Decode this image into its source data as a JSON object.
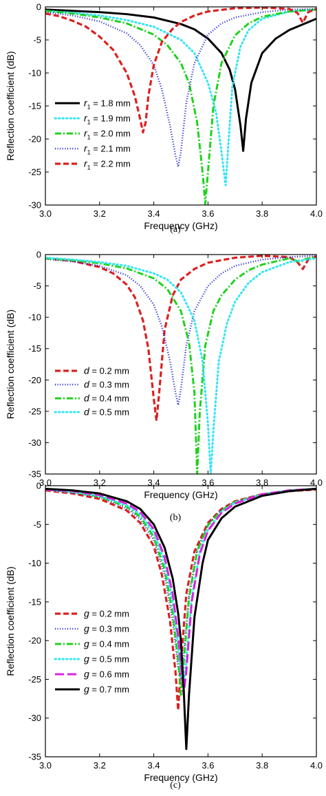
{
  "chart_data": [
    {
      "type": "line",
      "caption": "(a)",
      "xlabel": "Frequency (GHz)",
      "ylabel": "Reflection coefficient (dB)",
      "xlim": [
        3.0,
        4.0
      ],
      "ylim": [
        -30,
        0
      ],
      "xticks": [
        "3.0",
        "3.2",
        "3.4",
        "3.6",
        "3.8",
        "4.0"
      ],
      "yticks": [
        "0",
        "-5",
        "-10",
        "-15",
        "-20",
        "-25",
        "-30"
      ],
      "legend_position": "left",
      "series": [
        {
          "var": "r",
          "sub": "1",
          "value": "= 1.8 mm",
          "color": "#000000",
          "style": "solid",
          "x": [
            3.0,
            3.1,
            3.2,
            3.3,
            3.4,
            3.5,
            3.55,
            3.6,
            3.65,
            3.68,
            3.7,
            3.72,
            3.73,
            3.74,
            3.76,
            3.8,
            3.85,
            3.9,
            4.0
          ],
          "y": [
            -0.4,
            -0.6,
            -0.8,
            -1.1,
            -1.6,
            -2.6,
            -3.4,
            -4.8,
            -7.0,
            -9.5,
            -12.5,
            -18.0,
            -21.8,
            -17.0,
            -11.5,
            -7.0,
            -4.8,
            -3.5,
            -1.8
          ]
        },
        {
          "var": "r",
          "sub": "1",
          "value": "= 1.9 mm",
          "color": "#33e6f2",
          "style": "dot",
          "x": [
            3.0,
            3.1,
            3.2,
            3.3,
            3.4,
            3.5,
            3.55,
            3.6,
            3.63,
            3.65,
            3.665,
            3.67,
            3.69,
            3.72,
            3.75,
            3.8,
            3.9,
            4.0
          ],
          "y": [
            -0.6,
            -0.9,
            -1.3,
            -2.0,
            -3.0,
            -5.0,
            -7.0,
            -11.5,
            -16.0,
            -22.0,
            -27.0,
            -24.0,
            -12.0,
            -6.0,
            -3.5,
            -1.8,
            -0.7,
            -0.4
          ]
        },
        {
          "var": "r",
          "sub": "1",
          "value": "= 2.0 mm",
          "color": "#1ed21e",
          "style": "dashdot",
          "x": [
            3.0,
            3.1,
            3.2,
            3.3,
            3.4,
            3.45,
            3.5,
            3.53,
            3.56,
            3.58,
            3.59,
            3.6,
            3.62,
            3.65,
            3.7,
            3.75,
            3.8,
            3.9,
            4.0
          ],
          "y": [
            -0.6,
            -1.0,
            -1.6,
            -2.5,
            -4.2,
            -5.8,
            -8.5,
            -11.5,
            -17.5,
            -25.0,
            -29.8,
            -25.0,
            -15.0,
            -8.5,
            -4.3,
            -2.5,
            -1.5,
            -0.7,
            -0.4
          ]
        },
        {
          "var": "r",
          "sub": "1",
          "value": "= 2.1 mm",
          "color": "#1414d2",
          "style": "dense",
          "x": [
            3.0,
            3.1,
            3.2,
            3.3,
            3.35,
            3.4,
            3.43,
            3.46,
            3.48,
            3.49,
            3.5,
            3.52,
            3.55,
            3.6,
            3.65,
            3.7,
            3.8,
            3.9,
            4.0
          ],
          "y": [
            -0.8,
            -1.3,
            -2.2,
            -4.0,
            -5.8,
            -8.8,
            -12.5,
            -18.0,
            -22.5,
            -24.2,
            -22.0,
            -14.5,
            -8.5,
            -4.2,
            -2.5,
            -1.6,
            -0.8,
            -0.4,
            -0.3
          ]
        },
        {
          "var": "r",
          "sub": "1",
          "value": "= 2.2 mm",
          "color": "#dc2020",
          "style": "dash",
          "x": [
            3.0,
            3.05,
            3.1,
            3.15,
            3.2,
            3.25,
            3.3,
            3.33,
            3.35,
            3.36,
            3.37,
            3.38,
            3.4,
            3.43,
            3.47,
            3.5,
            3.55,
            3.6,
            3.7,
            3.8,
            3.9,
            3.93,
            3.95,
            3.97,
            4.0
          ],
          "y": [
            -1.0,
            -1.4,
            -2.1,
            -3.0,
            -4.5,
            -6.5,
            -10.0,
            -13.5,
            -17.0,
            -19.0,
            -17.5,
            -13.5,
            -8.8,
            -5.3,
            -3.3,
            -2.3,
            -1.3,
            -0.7,
            -0.2,
            -0.1,
            -0.3,
            -0.9,
            -2.4,
            -0.8,
            -0.3
          ]
        }
      ]
    },
    {
      "type": "line",
      "caption": "(b)",
      "xlabel": "Frequency (GHz)",
      "ylabel": "Reflection coefficient (dB)",
      "xlim": [
        3.0,
        4.0
      ],
      "ylim": [
        -35,
        0
      ],
      "xticks": [
        "3.0",
        "3.2",
        "3.4",
        "3.6",
        "3.8",
        "4.0"
      ],
      "yticks": [
        "0",
        "-5",
        "-10",
        "-15",
        "-20",
        "-25",
        "-30",
        "-35"
      ],
      "legend_position": "left",
      "series": [
        {
          "var": "d",
          "sub": "",
          "value": "= 0.2 mm",
          "color": "#dc2020",
          "style": "dash",
          "x": [
            3.0,
            3.1,
            3.2,
            3.25,
            3.3,
            3.33,
            3.36,
            3.38,
            3.4,
            3.41,
            3.42,
            3.44,
            3.47,
            3.5,
            3.55,
            3.6,
            3.7,
            3.8,
            3.9,
            3.93,
            3.95,
            3.97,
            4.0
          ],
          "y": [
            -0.6,
            -1.0,
            -2.0,
            -3.0,
            -4.8,
            -6.8,
            -10.5,
            -15.0,
            -23.0,
            -26.5,
            -22.0,
            -12.0,
            -6.5,
            -4.0,
            -2.3,
            -1.3,
            -0.5,
            -0.2,
            -0.4,
            -1.2,
            -2.3,
            -0.8,
            -0.3
          ]
        },
        {
          "var": "d",
          "sub": "",
          "value": "= 0.3 mm",
          "color": "#1414d2",
          "style": "dense",
          "x": [
            3.0,
            3.1,
            3.2,
            3.3,
            3.35,
            3.4,
            3.43,
            3.46,
            3.48,
            3.49,
            3.5,
            3.52,
            3.55,
            3.6,
            3.65,
            3.7,
            3.8,
            3.9,
            4.0
          ],
          "y": [
            -0.7,
            -1.1,
            -1.8,
            -3.3,
            -5.0,
            -8.0,
            -11.5,
            -17.0,
            -22.0,
            -24.0,
            -21.5,
            -14.5,
            -9.0,
            -5.0,
            -3.0,
            -1.8,
            -0.8,
            -0.4,
            -0.2
          ]
        },
        {
          "var": "d",
          "sub": "",
          "value": "= 0.4 mm",
          "color": "#1ed21e",
          "style": "dashdot",
          "x": [
            3.0,
            3.1,
            3.2,
            3.3,
            3.4,
            3.45,
            3.5,
            3.53,
            3.55,
            3.56,
            3.57,
            3.59,
            3.62,
            3.65,
            3.7,
            3.75,
            3.8,
            3.9,
            3.94,
            3.96,
            4.0
          ],
          "y": [
            -0.6,
            -0.9,
            -1.4,
            -2.2,
            -3.8,
            -5.5,
            -9.0,
            -14.0,
            -22.0,
            -35.0,
            -25.0,
            -14.5,
            -9.0,
            -6.5,
            -4.0,
            -2.5,
            -1.6,
            -0.6,
            -1.2,
            -0.7,
            -0.4
          ]
        },
        {
          "var": "d",
          "sub": "",
          "value": "= 0.5 mm",
          "color": "#33e6f2",
          "style": "dot",
          "x": [
            3.0,
            3.1,
            3.2,
            3.3,
            3.4,
            3.45,
            3.5,
            3.55,
            3.58,
            3.6,
            3.61,
            3.62,
            3.64,
            3.67,
            3.7,
            3.75,
            3.8,
            3.9,
            4.0
          ],
          "y": [
            -0.5,
            -0.8,
            -1.2,
            -1.8,
            -3.0,
            -4.0,
            -6.0,
            -10.5,
            -17.0,
            -27.0,
            -35.0,
            -28.0,
            -17.0,
            -11.0,
            -7.5,
            -4.5,
            -2.8,
            -1.2,
            -0.6
          ]
        }
      ]
    },
    {
      "type": "line",
      "caption": "(c)",
      "xlabel": "Frequency (GHz)",
      "ylabel": "Reflection coefficient (dB)",
      "xlim": [
        3.0,
        4.0
      ],
      "ylim": [
        -35,
        0
      ],
      "xticks": [
        "3.0",
        "3.2",
        "3.4",
        "3.6",
        "3.8",
        "4.0"
      ],
      "yticks": [
        "0",
        "-5",
        "-10",
        "-15",
        "-20",
        "-25",
        "-30",
        "-35"
      ],
      "legend_position": "left",
      "series": [
        {
          "var": "g",
          "sub": "",
          "value": "= 0.2 mm",
          "color": "#dc2020",
          "style": "dash",
          "x": [
            3.0,
            3.1,
            3.2,
            3.3,
            3.35,
            3.4,
            3.43,
            3.46,
            3.48,
            3.49,
            3.5,
            3.52,
            3.55,
            3.6,
            3.65,
            3.7,
            3.8,
            3.9,
            4.0
          ],
          "y": [
            -0.6,
            -1.0,
            -1.7,
            -3.2,
            -4.8,
            -7.8,
            -11.5,
            -17.5,
            -24.0,
            -29.0,
            -23.0,
            -14.0,
            -8.5,
            -4.8,
            -3.0,
            -2.0,
            -1.1,
            -0.7,
            -0.5
          ]
        },
        {
          "var": "g",
          "sub": "",
          "value": "= 0.3 mm",
          "color": "#1414d2",
          "style": "dense",
          "x": [
            3.0,
            3.1,
            3.2,
            3.3,
            3.35,
            3.4,
            3.44,
            3.47,
            3.49,
            3.5,
            3.51,
            3.53,
            3.56,
            3.6,
            3.65,
            3.7,
            3.8,
            3.9,
            4.0
          ],
          "y": [
            -0.5,
            -0.9,
            -1.5,
            -2.9,
            -4.3,
            -7.0,
            -11.5,
            -17.5,
            -23.5,
            -25.0,
            -22.0,
            -14.0,
            -8.3,
            -5.0,
            -3.1,
            -2.1,
            -1.1,
            -0.6,
            -0.4
          ]
        },
        {
          "var": "g",
          "sub": "",
          "value": "= 0.4 mm",
          "color": "#1ed21e",
          "style": "dashdot",
          "x": [
            3.0,
            3.1,
            3.2,
            3.3,
            3.35,
            3.4,
            3.44,
            3.47,
            3.49,
            3.5,
            3.51,
            3.53,
            3.56,
            3.6,
            3.65,
            3.7,
            3.8,
            3.9,
            4.0
          ],
          "y": [
            -0.5,
            -0.8,
            -1.4,
            -2.7,
            -4.0,
            -6.6,
            -10.8,
            -16.5,
            -22.5,
            -27.0,
            -23.0,
            -14.5,
            -8.5,
            -5.1,
            -3.2,
            -2.1,
            -1.1,
            -0.6,
            -0.4
          ]
        },
        {
          "var": "g",
          "sub": "",
          "value": "= 0.5 mm",
          "color": "#33e6f2",
          "style": "dot",
          "x": [
            3.0,
            3.1,
            3.2,
            3.3,
            3.35,
            3.4,
            3.44,
            3.47,
            3.49,
            3.5,
            3.51,
            3.52,
            3.54,
            3.57,
            3.6,
            3.65,
            3.7,
            3.8,
            3.9,
            4.0
          ],
          "y": [
            -0.5,
            -0.8,
            -1.3,
            -2.5,
            -3.7,
            -6.0,
            -9.8,
            -15.0,
            -20.5,
            -24.0,
            -26.0,
            -22.5,
            -14.5,
            -8.5,
            -5.7,
            -3.4,
            -2.2,
            -1.1,
            -0.6,
            -0.4
          ]
        },
        {
          "var": "g",
          "sub": "",
          "value": "= 0.6 mm",
          "color": "#e020e0",
          "style": "longdash",
          "x": [
            3.0,
            3.1,
            3.2,
            3.3,
            3.35,
            3.4,
            3.44,
            3.47,
            3.49,
            3.5,
            3.51,
            3.52,
            3.54,
            3.57,
            3.6,
            3.65,
            3.7,
            3.8,
            3.9,
            4.0
          ],
          "y": [
            -0.5,
            -0.7,
            -1.2,
            -2.3,
            -3.4,
            -5.6,
            -9.2,
            -14.0,
            -19.5,
            -23.0,
            -27.0,
            -24.0,
            -15.0,
            -8.8,
            -5.8,
            -3.5,
            -2.3,
            -1.1,
            -0.6,
            -0.4
          ]
        },
        {
          "var": "g",
          "sub": "",
          "value": "= 0.7 mm",
          "color": "#000000",
          "style": "solid",
          "x": [
            3.0,
            3.1,
            3.2,
            3.3,
            3.35,
            3.4,
            3.44,
            3.47,
            3.49,
            3.5,
            3.51,
            3.52,
            3.53,
            3.55,
            3.58,
            3.6,
            3.65,
            3.7,
            3.8,
            3.9,
            4.0
          ],
          "y": [
            -0.4,
            -0.6,
            -1.0,
            -2.0,
            -3.0,
            -5.0,
            -8.0,
            -12.0,
            -16.5,
            -20.0,
            -26.0,
            -34.0,
            -27.0,
            -17.0,
            -10.0,
            -7.0,
            -4.2,
            -2.7,
            -1.3,
            -0.7,
            -0.4
          ]
        }
      ]
    }
  ]
}
